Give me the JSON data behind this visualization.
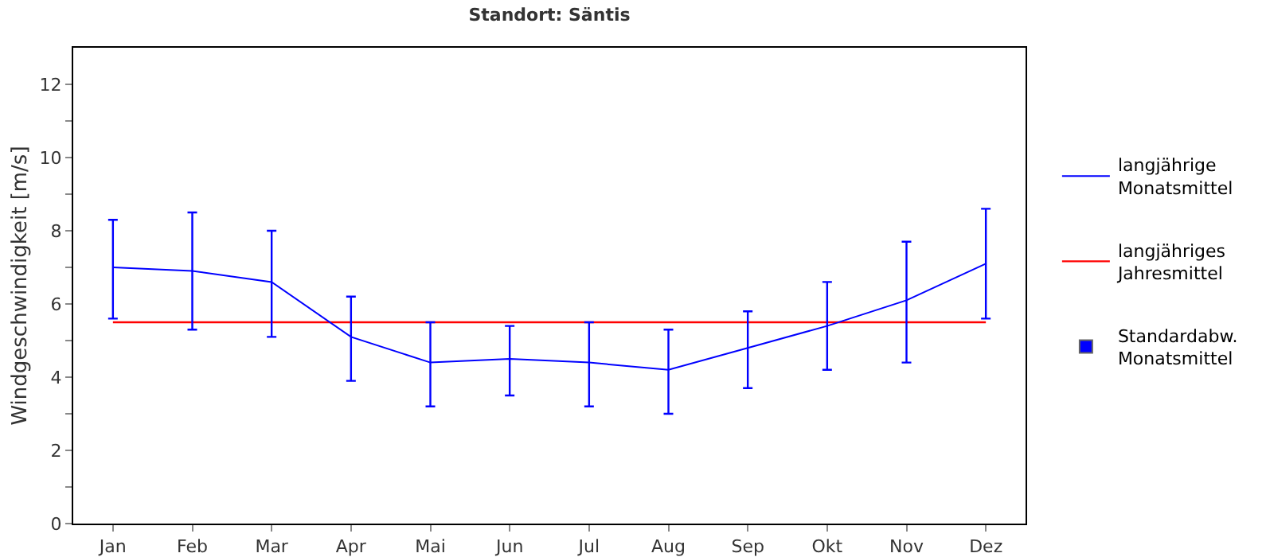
{
  "chart_data": {
    "type": "line",
    "title": "Standort: Säntis",
    "ylabel": "Windgeschwindigkeit [m/s]",
    "categories": [
      "Jan",
      "Feb",
      "Mar",
      "Apr",
      "Mai",
      "Jun",
      "Jul",
      "Aug",
      "Sep",
      "Okt",
      "Nov",
      "Dez"
    ],
    "series": [
      {
        "name": "langjährige Monatsmittel",
        "color": "#0000ff",
        "values": [
          7.0,
          6.9,
          6.6,
          5.1,
          4.4,
          4.5,
          4.4,
          4.2,
          4.8,
          5.4,
          6.1,
          7.1
        ],
        "errors": [
          [
            5.6,
            8.3
          ],
          [
            5.3,
            8.5
          ],
          [
            5.1,
            8.0
          ],
          [
            3.9,
            6.2
          ],
          [
            3.2,
            5.5
          ],
          [
            3.5,
            5.4
          ],
          [
            3.2,
            5.5
          ],
          [
            3.0,
            5.3
          ],
          [
            3.7,
            5.8
          ],
          [
            4.2,
            6.6
          ],
          [
            4.4,
            7.7
          ],
          [
            5.6,
            8.6
          ]
        ]
      },
      {
        "name": "Standardabw. Monatsmittel",
        "type": "scatter",
        "marker": "square",
        "color": "#0000ff",
        "values": [
          null,
          null,
          null,
          null,
          null,
          null,
          null,
          null,
          null,
          null,
          null,
          null
        ]
      }
    ],
    "ref_lines": [
      {
        "axis": "y",
        "value": 5.5,
        "label": "langjähriges Jahresmittel",
        "color": "#ff0000"
      }
    ],
    "ylim": [
      0,
      13
    ],
    "yticks": [
      0,
      {
        "value": 1,
        "label": null
      },
      2,
      {
        "value": 3,
        "label": null
      },
      4,
      {
        "value": 5,
        "label": null
      },
      6,
      {
        "value": 7,
        "label": null
      },
      8,
      {
        "value": 9,
        "label": null
      },
      10,
      {
        "value": 11,
        "label": null
      },
      12
    ],
    "grid": false,
    "legend": "right",
    "marker": "none",
    "line_style": "solid"
  }
}
